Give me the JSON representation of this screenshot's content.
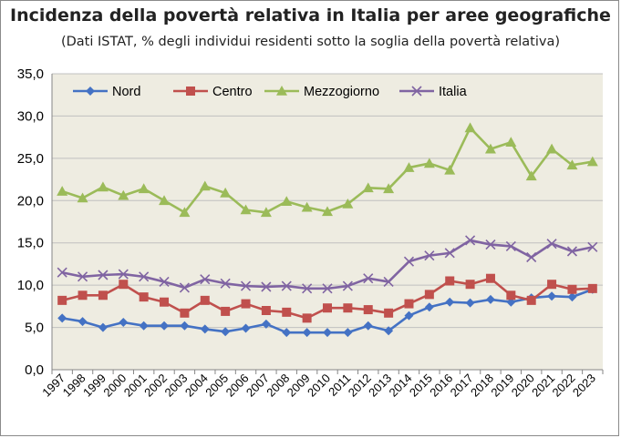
{
  "title": "Incidenza della povertà relativa in Italia per aree geografiche",
  "subtitle": "(Dati ISTAT, % degli individui residenti sotto la soglia della povertà relativa)",
  "colors": {
    "plot_bg": "#EEECE1",
    "grid": "#C0C0C0",
    "Nord": "#4472C4",
    "Centro": "#C0504D",
    "Mezzogiorno": "#9BBB59",
    "Italia": "#8064A2"
  },
  "chart_data": {
    "type": "line",
    "title": "Incidenza della povertà relativa in Italia per aree geografiche",
    "subtitle": "(Dati ISTAT, % degli individui residenti sotto la soglia della povertà relativa)",
    "ylim": [
      0,
      35
    ],
    "yticks": [
      "0,0",
      "5,0",
      "10,0",
      "15,0",
      "20,0",
      "25,0",
      "30,0",
      "35,0"
    ],
    "ytick_values": [
      0,
      5,
      10,
      15,
      20,
      25,
      30,
      35
    ],
    "grid": true,
    "legend": "top",
    "categories": [
      "1997",
      "1998",
      "1999",
      "2000",
      "2001",
      "2002",
      "2003",
      "2004",
      "2005",
      "2006",
      "2007",
      "2008",
      "2009",
      "2010",
      "2011",
      "2012",
      "2013",
      "2014",
      "2015",
      "2016",
      "2017",
      "2018",
      "2019",
      "2020",
      "2021",
      "2022",
      "2023"
    ],
    "series": [
      {
        "name": "Nord",
        "marker": "diamond",
        "values": [
          6.1,
          5.7,
          5.0,
          5.6,
          5.2,
          5.2,
          5.2,
          4.8,
          4.5,
          4.9,
          5.4,
          4.4,
          4.4,
          4.4,
          4.4,
          5.2,
          4.6,
          6.4,
          7.4,
          8.0,
          7.9,
          8.3,
          8.0,
          8.5,
          8.7,
          8.6,
          9.5
        ]
      },
      {
        "name": "Centro",
        "marker": "square",
        "values": [
          8.2,
          8.8,
          8.8,
          10.1,
          8.6,
          8.0,
          6.7,
          8.2,
          6.9,
          7.8,
          7.0,
          6.8,
          6.1,
          7.3,
          7.3,
          7.1,
          6.7,
          7.8,
          8.9,
          10.5,
          10.1,
          10.8,
          8.8,
          8.2,
          10.1,
          9.5,
          9.6
        ]
      },
      {
        "name": "Mezzogiorno",
        "marker": "triangle",
        "values": [
          21.1,
          20.3,
          21.6,
          20.6,
          21.4,
          20.0,
          18.6,
          21.7,
          20.9,
          18.9,
          18.6,
          19.9,
          19.2,
          18.7,
          19.6,
          21.5,
          21.4,
          23.9,
          24.4,
          23.6,
          28.6,
          26.1,
          26.9,
          22.9,
          26.1,
          24.2,
          24.6
        ]
      },
      {
        "name": "Italia",
        "marker": "x",
        "values": [
          11.5,
          11.0,
          11.2,
          11.3,
          11.0,
          10.4,
          9.7,
          10.7,
          10.2,
          9.9,
          9.8,
          9.9,
          9.6,
          9.6,
          9.9,
          10.8,
          10.4,
          12.8,
          13.5,
          13.8,
          15.3,
          14.8,
          14.6,
          13.3,
          14.9,
          14.0,
          14.5
        ]
      }
    ]
  }
}
